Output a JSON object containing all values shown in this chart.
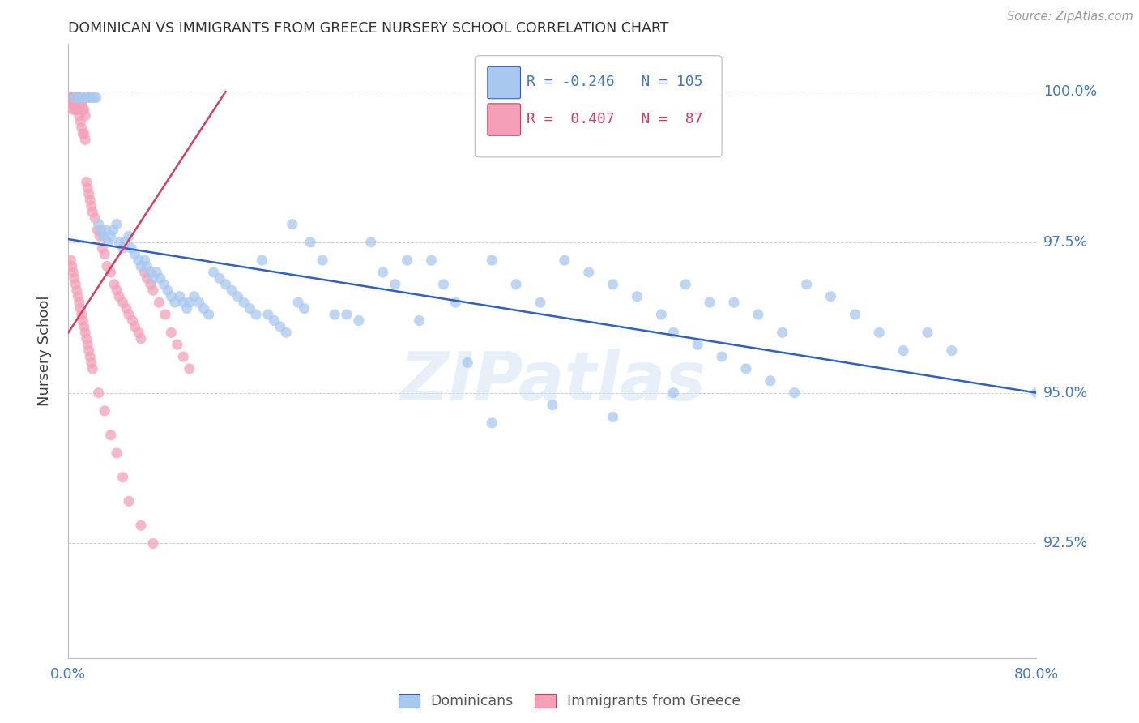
{
  "title": "DOMINICAN VS IMMIGRANTS FROM GREECE NURSERY SCHOOL CORRELATION CHART",
  "source": "Source: ZipAtlas.com",
  "ylabel": "Nursery School",
  "ytick_labels": [
    "92.5%",
    "95.0%",
    "97.5%",
    "100.0%"
  ],
  "ytick_values": [
    0.925,
    0.95,
    0.975,
    1.0
  ],
  "xlim": [
    0.0,
    0.8
  ],
  "ylim": [
    0.906,
    1.008
  ],
  "blue_R": "-0.246",
  "blue_N": "105",
  "pink_R": "0.407",
  "pink_N": "87",
  "blue_color": "#A8C8F0",
  "pink_color": "#F4A0B8",
  "blue_line_color": "#3060C0",
  "pink_line_color": "#D04060",
  "title_color": "#303030",
  "axis_color": "#4477BB",
  "grid_color": "#CCCCCC",
  "blue_dots_x": [
    0.005,
    0.007,
    0.009,
    0.011,
    0.013,
    0.015,
    0.017,
    0.019,
    0.021,
    0.023,
    0.025,
    0.027,
    0.029,
    0.031,
    0.033,
    0.035,
    0.037,
    0.04,
    0.042,
    0.045,
    0.047,
    0.05,
    0.052,
    0.055,
    0.058,
    0.06,
    0.063,
    0.065,
    0.068,
    0.07,
    0.073,
    0.076,
    0.079,
    0.082,
    0.085,
    0.088,
    0.092,
    0.095,
    0.098,
    0.1,
    0.104,
    0.108,
    0.112,
    0.116,
    0.12,
    0.125,
    0.13,
    0.135,
    0.14,
    0.145,
    0.15,
    0.155,
    0.16,
    0.165,
    0.17,
    0.175,
    0.18,
    0.185,
    0.19,
    0.195,
    0.2,
    0.21,
    0.22,
    0.23,
    0.24,
    0.25,
    0.26,
    0.27,
    0.28,
    0.29,
    0.3,
    0.31,
    0.32,
    0.33,
    0.35,
    0.37,
    0.39,
    0.41,
    0.43,
    0.45,
    0.47,
    0.49,
    0.51,
    0.53,
    0.55,
    0.57,
    0.59,
    0.61,
    0.63,
    0.65,
    0.67,
    0.69,
    0.71,
    0.73,
    0.5,
    0.52,
    0.54,
    0.56,
    0.58,
    0.6,
    0.35,
    0.4,
    0.45,
    0.5,
    0.8
  ],
  "blue_dots_y": [
    0.999,
    0.999,
    0.999,
    0.999,
    0.999,
    0.999,
    0.999,
    0.999,
    0.999,
    0.999,
    0.978,
    0.977,
    0.976,
    0.977,
    0.975,
    0.976,
    0.977,
    0.978,
    0.975,
    0.974,
    0.975,
    0.976,
    0.974,
    0.973,
    0.972,
    0.971,
    0.972,
    0.971,
    0.97,
    0.969,
    0.97,
    0.969,
    0.968,
    0.967,
    0.966,
    0.965,
    0.966,
    0.965,
    0.964,
    0.965,
    0.966,
    0.965,
    0.964,
    0.963,
    0.97,
    0.969,
    0.968,
    0.967,
    0.966,
    0.965,
    0.964,
    0.963,
    0.972,
    0.963,
    0.962,
    0.961,
    0.96,
    0.978,
    0.965,
    0.964,
    0.975,
    0.972,
    0.963,
    0.963,
    0.962,
    0.975,
    0.97,
    0.968,
    0.972,
    0.962,
    0.972,
    0.968,
    0.965,
    0.955,
    0.972,
    0.968,
    0.965,
    0.972,
    0.97,
    0.968,
    0.966,
    0.963,
    0.968,
    0.965,
    0.965,
    0.963,
    0.96,
    0.968,
    0.966,
    0.963,
    0.96,
    0.957,
    0.96,
    0.957,
    0.96,
    0.958,
    0.956,
    0.954,
    0.952,
    0.95,
    0.945,
    0.948,
    0.946,
    0.95,
    0.95
  ],
  "pink_dots_x": [
    0.001,
    0.002,
    0.002,
    0.003,
    0.003,
    0.004,
    0.004,
    0.005,
    0.005,
    0.006,
    0.006,
    0.007,
    0.007,
    0.008,
    0.008,
    0.009,
    0.009,
    0.01,
    0.01,
    0.011,
    0.011,
    0.012,
    0.012,
    0.013,
    0.013,
    0.014,
    0.014,
    0.015,
    0.016,
    0.017,
    0.018,
    0.019,
    0.02,
    0.022,
    0.024,
    0.026,
    0.028,
    0.03,
    0.032,
    0.035,
    0.038,
    0.04,
    0.042,
    0.045,
    0.048,
    0.05,
    0.053,
    0.055,
    0.058,
    0.06,
    0.063,
    0.065,
    0.068,
    0.07,
    0.075,
    0.08,
    0.085,
    0.09,
    0.095,
    0.1,
    0.002,
    0.003,
    0.004,
    0.005,
    0.006,
    0.007,
    0.008,
    0.009,
    0.01,
    0.011,
    0.012,
    0.013,
    0.014,
    0.015,
    0.016,
    0.017,
    0.018,
    0.019,
    0.02,
    0.025,
    0.03,
    0.035,
    0.04,
    0.045,
    0.05,
    0.06,
    0.07
  ],
  "pink_dots_y": [
    0.999,
    0.999,
    0.998,
    0.999,
    0.998,
    0.999,
    0.997,
    0.999,
    0.998,
    0.999,
    0.997,
    0.999,
    0.997,
    0.999,
    0.997,
    0.999,
    0.996,
    0.998,
    0.995,
    0.998,
    0.994,
    0.997,
    0.993,
    0.997,
    0.993,
    0.996,
    0.992,
    0.985,
    0.984,
    0.983,
    0.982,
    0.981,
    0.98,
    0.979,
    0.977,
    0.976,
    0.974,
    0.973,
    0.971,
    0.97,
    0.968,
    0.967,
    0.966,
    0.965,
    0.964,
    0.963,
    0.962,
    0.961,
    0.96,
    0.959,
    0.97,
    0.969,
    0.968,
    0.967,
    0.965,
    0.963,
    0.96,
    0.958,
    0.956,
    0.954,
    0.972,
    0.971,
    0.97,
    0.969,
    0.968,
    0.967,
    0.966,
    0.965,
    0.964,
    0.963,
    0.962,
    0.961,
    0.96,
    0.959,
    0.958,
    0.957,
    0.956,
    0.955,
    0.954,
    0.95,
    0.947,
    0.943,
    0.94,
    0.936,
    0.932,
    0.928,
    0.925
  ],
  "blue_line_x": [
    0.0,
    0.8
  ],
  "blue_line_y": [
    0.9755,
    0.95
  ],
  "pink_line_x": [
    0.0,
    0.13
  ],
  "pink_line_y": [
    0.96,
    1.0
  ]
}
